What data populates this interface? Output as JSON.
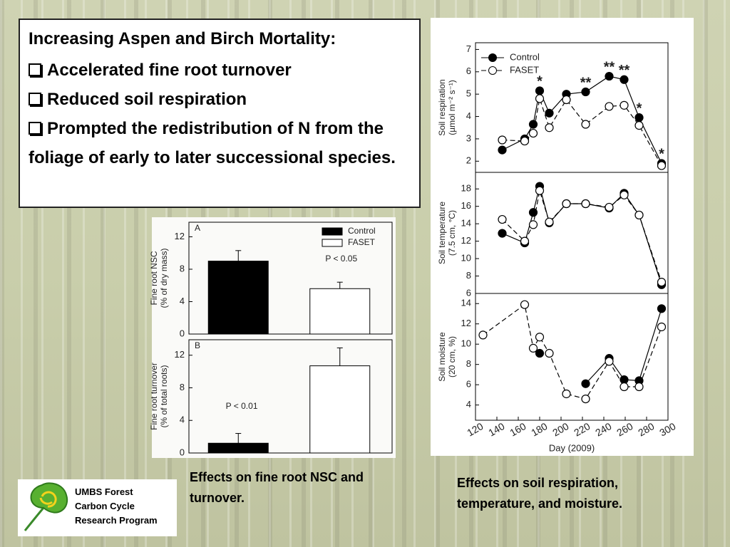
{
  "textbox": {
    "title": "Increasing Aspen and Birch Mortality:",
    "items": [
      "Accelerated fine root turnover",
      "Reduced soil respiration",
      "Prompted the redistribution of N from the foliage of early to later successional species."
    ]
  },
  "captions": [
    "Effects on fine root NSC and turnover.",
    "Effects on soil respiration, temperature, and moisture."
  ],
  "logo": {
    "lines": [
      "UMBS Forest",
      "Carbon Cycle",
      "Research Program"
    ]
  },
  "chart_data": [
    {
      "type": "bar",
      "panel": "A",
      "ylabel": [
        "Fine root NSC",
        "(% of dry mass)"
      ],
      "ylim": [
        0,
        13.8
      ],
      "yticks": [
        0,
        4,
        8,
        12
      ],
      "legend": "upper right",
      "annotations": [
        {
          "text": "P < 0.05"
        }
      ],
      "series": [
        {
          "name": "Control",
          "color": "#000000",
          "values": [
            9.0
          ],
          "errors": [
            1.3
          ]
        },
        {
          "name": "FASET",
          "color": "#ffffff",
          "values": [
            5.6
          ],
          "errors": [
            0.8
          ]
        }
      ]
    },
    {
      "type": "bar",
      "panel": "B",
      "ylabel": [
        "Fine root turnover",
        "(% of total roots)"
      ],
      "ylim": [
        0,
        13.9
      ],
      "yticks": [
        0,
        4,
        8,
        12
      ],
      "annotations": [
        {
          "text": "P < 0.01"
        }
      ],
      "series": [
        {
          "color": "#000000",
          "values": [
            1.2
          ],
          "errors": [
            1.2
          ]
        },
        {
          "color": "#ffffff",
          "values": [
            10.7
          ],
          "errors": [
            2.2
          ]
        }
      ]
    },
    {
      "type": "line",
      "ylabel": [
        "Soil respiration",
        "(µmol m⁻² s⁻¹)"
      ],
      "xlim": [
        120,
        300
      ],
      "ylim": [
        1.5,
        7.3
      ],
      "yticks": [
        2,
        3,
        4,
        5,
        6,
        7
      ],
      "legend": "upper left",
      "x": [
        145,
        166,
        174,
        180,
        189,
        205,
        223,
        245,
        259,
        273,
        294
      ],
      "series": [
        {
          "name": "Control",
          "color": "#000000",
          "marker": "filled",
          "values": [
            2.5,
            3.0,
            3.65,
            5.15,
            4.15,
            5.0,
            5.1,
            5.8,
            5.65,
            3.95,
            1.9
          ]
        },
        {
          "name": "FASET",
          "color": "#000000",
          "marker": "open",
          "values": [
            2.95,
            2.9,
            3.25,
            4.8,
            3.5,
            4.75,
            3.65,
            4.45,
            4.5,
            3.6,
            1.8
          ]
        }
      ],
      "annotations": [
        {
          "x": 180,
          "text": "*"
        },
        {
          "x": 223,
          "text": "**"
        },
        {
          "x": 245,
          "text": "**"
        },
        {
          "x": 259,
          "text": "**"
        },
        {
          "x": 273,
          "text": "*"
        },
        {
          "x": 294,
          "text": "*"
        }
      ]
    },
    {
      "type": "line",
      "ylabel": [
        "Soil temperature",
        "(7.5 cm, °C)"
      ],
      "xlim": [
        120,
        300
      ],
      "ylim": [
        6,
        19.9
      ],
      "yticks": [
        6,
        8,
        10,
        12,
        14,
        16,
        18
      ],
      "x": [
        145,
        166,
        174,
        180,
        189,
        205,
        223,
        245,
        259,
        273,
        294
      ],
      "series": [
        {
          "color": "#000000",
          "marker": "filled",
          "values": [
            12.9,
            11.8,
            15.3,
            18.3,
            14.1,
            16.3,
            16.3,
            15.8,
            17.5,
            15.0,
            7.0
          ]
        },
        {
          "color": "#000000",
          "marker": "open",
          "values": [
            14.5,
            12.0,
            13.9,
            17.8,
            14.2,
            16.3,
            16.3,
            15.9,
            17.3,
            15.0,
            7.3
          ]
        }
      ]
    },
    {
      "type": "line",
      "ylabel": [
        "Soil moisture",
        "(20 cm, %)"
      ],
      "xlabel": "Day (2009)",
      "xlim": [
        120,
        300
      ],
      "ylim": [
        2.5,
        15
      ],
      "yticks": [
        4,
        6,
        8,
        10,
        12,
        14
      ],
      "xticks": [
        120,
        140,
        160,
        180,
        200,
        220,
        240,
        260,
        280,
        300
      ],
      "x": [
        127,
        166,
        174,
        180,
        189,
        205,
        223,
        245,
        259,
        273,
        294
      ],
      "series": [
        {
          "color": "#000000",
          "marker": "filled",
          "values": [
            null,
            null,
            null,
            9.1,
            null,
            null,
            6.1,
            8.6,
            6.5,
            6.4,
            13.5
          ]
        },
        {
          "color": "#000000",
          "marker": "open",
          "values": [
            10.9,
            13.9,
            9.6,
            10.7,
            9.1,
            5.1,
            4.6,
            8.3,
            5.8,
            5.8,
            11.7
          ]
        }
      ]
    }
  ]
}
